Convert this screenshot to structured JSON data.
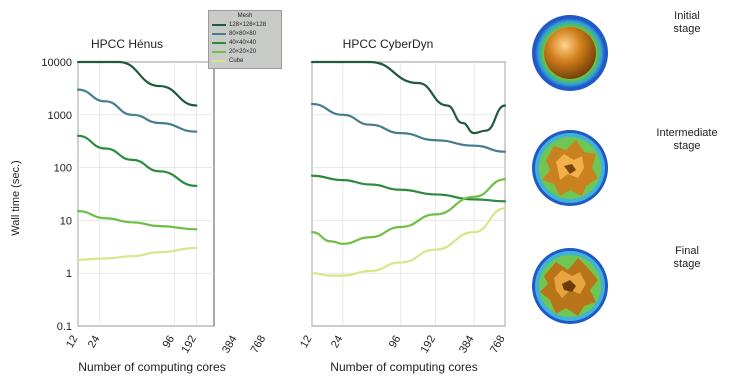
{
  "chart_data": [
    {
      "type": "line",
      "title": "HPCC Hénus",
      "xlabel": "Number of computing cores",
      "ylabel": "Wall time (sec.)",
      "y_scale": "log",
      "ylim": [
        0.1,
        10000
      ],
      "y_ticks": [
        "0.1",
        "1",
        "10",
        "100",
        "1000",
        "10000"
      ],
      "x_ticks": [
        "12",
        "24",
        "96",
        "192",
        "384",
        "768"
      ],
      "x_tick_positions": [
        0,
        0.16,
        0.71,
        0.87,
        1.17,
        1.38
      ],
      "grid": true,
      "series": [
        {
          "color": "#1f5a3c",
          "points": [
            [
              0.0,
              10000
            ],
            [
              0.3,
              10000
            ],
            [
              0.6,
              3500
            ],
            [
              0.87,
              1500
            ]
          ]
        },
        {
          "color": "#467d8c",
          "points": [
            [
              0.0,
              3000
            ],
            [
              0.2,
              1800
            ],
            [
              0.4,
              1000
            ],
            [
              0.6,
              700
            ],
            [
              0.87,
              480
            ]
          ]
        },
        {
          "color": "#2c8a3d",
          "points": [
            [
              0.0,
              400
            ],
            [
              0.2,
              230
            ],
            [
              0.4,
              140
            ],
            [
              0.6,
              85
            ],
            [
              0.87,
              45
            ]
          ]
        },
        {
          "color": "#6fbf45",
          "points": [
            [
              0.0,
              15
            ],
            [
              0.2,
              11
            ],
            [
              0.4,
              9.2
            ],
            [
              0.6,
              7.8
            ],
            [
              0.87,
              6.8
            ]
          ]
        },
        {
          "color": "#d4e88a",
          "points": [
            [
              0.0,
              1.8
            ],
            [
              0.2,
              1.9
            ],
            [
              0.4,
              2.1
            ],
            [
              0.6,
              2.5
            ],
            [
              0.87,
              3.0
            ]
          ]
        }
      ]
    },
    {
      "type": "line",
      "title": "HPCC CyberDyn",
      "xlabel": "Number of computing cores",
      "ylabel": "",
      "y_scale": "log",
      "ylim": [
        0.1,
        10000
      ],
      "x_ticks": [
        "12",
        "24",
        "96",
        "192",
        "384",
        "768"
      ],
      "x_tick_positions": [
        0,
        0.16,
        0.46,
        0.64,
        0.84,
        1.0
      ],
      "grid": true,
      "series": [
        {
          "color": "#1f5a3c",
          "points": [
            [
              0.0,
              10000
            ],
            [
              0.3,
              10000
            ],
            [
              0.55,
              4000
            ],
            [
              0.7,
              1500
            ],
            [
              0.78,
              700
            ],
            [
              0.84,
              450
            ],
            [
              0.9,
              500
            ],
            [
              1.0,
              1500
            ]
          ]
        },
        {
          "color": "#467d8c",
          "points": [
            [
              0.0,
              1600
            ],
            [
              0.16,
              1000
            ],
            [
              0.3,
              650
            ],
            [
              0.46,
              450
            ],
            [
              0.64,
              330
            ],
            [
              0.84,
              260
            ],
            [
              1.0,
              200
            ]
          ]
        },
        {
          "color": "#2c8a3d",
          "points": [
            [
              0.0,
              70
            ],
            [
              0.16,
              58
            ],
            [
              0.3,
              48
            ],
            [
              0.46,
              38
            ],
            [
              0.64,
              31
            ],
            [
              0.84,
              25
            ],
            [
              1.0,
              23
            ]
          ]
        },
        {
          "color": "#6fbf45",
          "points": [
            [
              0.0,
              6
            ],
            [
              0.1,
              4
            ],
            [
              0.16,
              3.6
            ],
            [
              0.3,
              4.8
            ],
            [
              0.46,
              7.5
            ],
            [
              0.64,
              13
            ],
            [
              0.84,
              28
            ],
            [
              1.0,
              60
            ]
          ]
        },
        {
          "color": "#d4e88a",
          "points": [
            [
              0.0,
              1.0
            ],
            [
              0.1,
              0.9
            ],
            [
              0.16,
              0.9
            ],
            [
              0.3,
              1.1
            ],
            [
              0.46,
              1.6
            ],
            [
              0.64,
              2.8
            ],
            [
              0.84,
              6
            ],
            [
              1.0,
              17
            ]
          ]
        }
      ]
    }
  ],
  "legend": {
    "title": "Mesh",
    "items": [
      {
        "label": "128×128×128",
        "color": "#1f5a3c"
      },
      {
        "label": "80×80×80",
        "color": "#467d8c"
      },
      {
        "label": "40×40×40",
        "color": "#2c8a3d"
      },
      {
        "label": "20×20×20",
        "color": "#6fbf45"
      },
      {
        "label": "Cube",
        "color": "#d4e88a"
      }
    ]
  },
  "stages": [
    {
      "label_line1": "Initial",
      "label_line2": "stage",
      "state": "smooth"
    },
    {
      "label_line1": "Intermediate",
      "label_line2": "stage",
      "state": "rough"
    },
    {
      "label_line1": "Final",
      "label_line2": "stage",
      "state": "rough"
    }
  ]
}
